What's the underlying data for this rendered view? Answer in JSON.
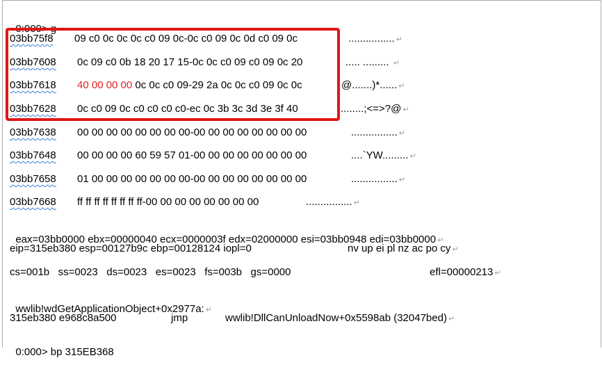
{
  "cmd": {
    "prompt": "0:000> g",
    "mark": "↵"
  },
  "mark": "↵",
  "dump": [
    {
      "addr": "03bb75f8",
      "hex_red": "",
      "hex": "09 c0 0c 0c 0c c0 09 0c-0c c0 09 0c 0d c0 09 0c",
      "ascii": "................"
    },
    {
      "addr": "03bb7608",
      "hex_red": "",
      "hex": "0c 09 c0 0b 18 20 17 15-0c 0c c0 09 c0 09 0c 20",
      "ascii": "..... ......... "
    },
    {
      "addr": "03bb7618",
      "hex_red": "40 00 00 00",
      "hex": " 0c 0c c0 09-29 2a 0c 0c c0 09 0c 0c",
      "ascii": "@.......)*......"
    },
    {
      "addr": "03bb7628",
      "hex_red": "",
      "hex": "0c c0 09 0c c0 c0 c0 c0-ec 0c 3b 3c 3d 3e 3f 40",
      "ascii": "........;<=>?@"
    },
    {
      "addr": "03bb7638",
      "hex_red": "",
      "hex": "00 00 00 00 00 00 00 00-00 00 00 00 00 00 00 00",
      "ascii": "................"
    },
    {
      "addr": "03bb7648",
      "hex_red": "",
      "hex": "00 00 00 00 60 59 57 01-00 00 00 00 00 00 00 00",
      "ascii": "....`YW........."
    },
    {
      "addr": "03bb7658",
      "hex_red": "",
      "hex": "01 00 00 00 00 00 00 00-00 00 00 00 00 00 00 00",
      "ascii": "................"
    },
    {
      "addr": "03bb7668",
      "hex_red": "",
      "hex": "ff ff ff ff ff ff ff ff-00 00 00 00 00 00 00 00",
      "ascii": "................"
    }
  ],
  "regs1": "eax=03bb0000 ebx=00000040 ecx=0000003f edx=02000000 esi=03bb0948 edi=03bb0000",
  "regs2": {
    "left": "eip=315eb380 esp=00127b9c ebp=00128124 iopl=0",
    "flags": "nv up ei pl nz ac po cy"
  },
  "regs3": {
    "left": "cs=001b   ss=0023   ds=0023   es=0023   fs=003b   gs=0000",
    "efl": "efl=00000213"
  },
  "symbol": "wwlib!wdGetApplicationObject+0x2977a:",
  "disasm": {
    "addr_bytes": "315eb380 e968c8a500",
    "mnemonic": "jmp",
    "target": "wwlib!DllCanUnloadNow+0x5598ab (32047bed)"
  },
  "last_cmd": "0:000> bp 315EB368"
}
